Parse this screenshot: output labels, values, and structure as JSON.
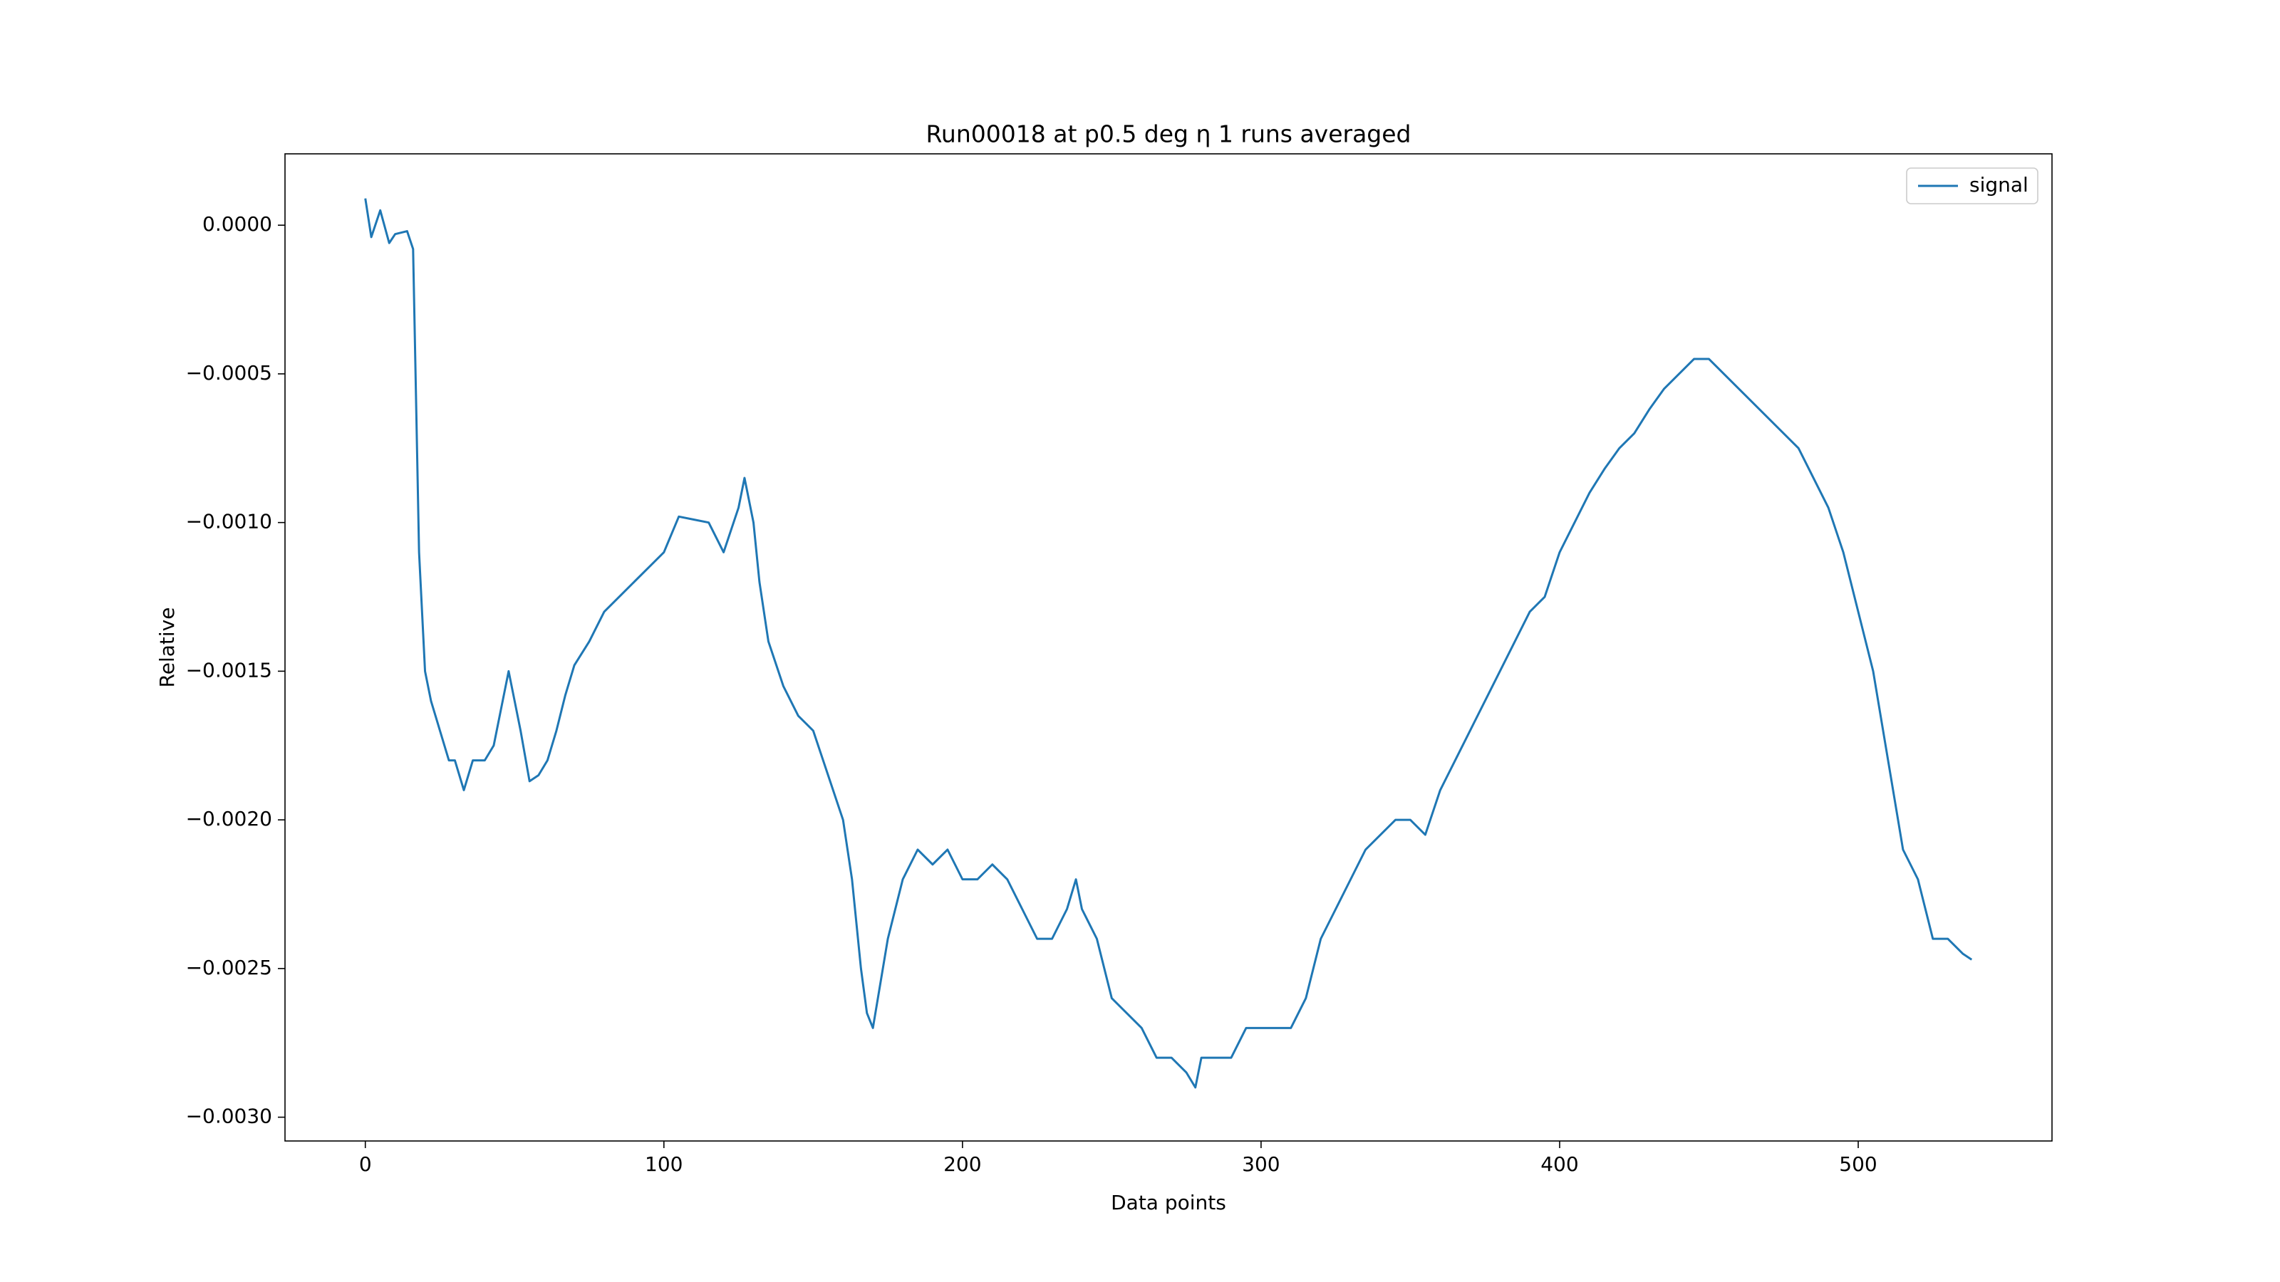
{
  "chart_data": {
    "type": "line",
    "title": "Run00018 at p0.5 deg η 1 runs averaged",
    "x_label": "Data points",
    "y_label": "Relative",
    "x": [
      0,
      2,
      5,
      8,
      10,
      14,
      16,
      18,
      20,
      22,
      25,
      28,
      30,
      33,
      36,
      40,
      43,
      46,
      48,
      50,
      52,
      55,
      58,
      61,
      64,
      67,
      70,
      75,
      80,
      85,
      90,
      95,
      100,
      105,
      110,
      115,
      120,
      125,
      127,
      130,
      132,
      135,
      140,
      145,
      150,
      155,
      160,
      163,
      166,
      168,
      170,
      175,
      180,
      185,
      190,
      195,
      200,
      205,
      210,
      215,
      220,
      225,
      230,
      235,
      238,
      240,
      245,
      250,
      255,
      260,
      265,
      270,
      275,
      278,
      280,
      285,
      290,
      295,
      300,
      305,
      310,
      315,
      320,
      325,
      330,
      335,
      340,
      345,
      350,
      355,
      360,
      365,
      370,
      375,
      380,
      385,
      390,
      395,
      400,
      405,
      410,
      415,
      420,
      425,
      430,
      435,
      440,
      445,
      450,
      455,
      460,
      465,
      470,
      475,
      480,
      485,
      490,
      495,
      500,
      505,
      510,
      515,
      520,
      525,
      530,
      535,
      538
    ],
    "series": [
      {
        "name": "signal",
        "color": "#1f77b4",
        "values": [
          9e-05,
          -4e-05,
          5e-05,
          -6e-05,
          -3e-05,
          -2e-05,
          -8e-05,
          -0.0011,
          -0.0015,
          -0.0016,
          -0.0017,
          -0.0018,
          -0.0018,
          -0.0019,
          -0.0018,
          -0.0018,
          -0.00175,
          -0.0016,
          -0.0015,
          -0.0016,
          -0.0017,
          -0.00187,
          -0.00185,
          -0.0018,
          -0.0017,
          -0.00158,
          -0.00148,
          -0.0014,
          -0.0013,
          -0.00125,
          -0.0012,
          -0.00115,
          -0.0011,
          -0.00098,
          -0.00099,
          -0.001,
          -0.0011,
          -0.00095,
          -0.00085,
          -0.001,
          -0.0012,
          -0.0014,
          -0.00155,
          -0.00165,
          -0.0017,
          -0.00185,
          -0.002,
          -0.0022,
          -0.0025,
          -0.00265,
          -0.0027,
          -0.0024,
          -0.0022,
          -0.0021,
          -0.00215,
          -0.0021,
          -0.0022,
          -0.0022,
          -0.00215,
          -0.0022,
          -0.0023,
          -0.0024,
          -0.0024,
          -0.0023,
          -0.0022,
          -0.0023,
          -0.0024,
          -0.0026,
          -0.00265,
          -0.0027,
          -0.0028,
          -0.0028,
          -0.00285,
          -0.0029,
          -0.0028,
          -0.0028,
          -0.0028,
          -0.0027,
          -0.0027,
          -0.0027,
          -0.0027,
          -0.0026,
          -0.0024,
          -0.0023,
          -0.0022,
          -0.0021,
          -0.00205,
          -0.002,
          -0.002,
          -0.00205,
          -0.0019,
          -0.0018,
          -0.0017,
          -0.0016,
          -0.0015,
          -0.0014,
          -0.0013,
          -0.00125,
          -0.0011,
          -0.001,
          -0.0009,
          -0.00082,
          -0.00075,
          -0.0007,
          -0.00062,
          -0.00055,
          -0.0005,
          -0.00045,
          -0.00045,
          -0.0005,
          -0.00055,
          -0.0006,
          -0.00065,
          -0.0007,
          -0.00075,
          -0.00085,
          -0.00095,
          -0.0011,
          -0.0013,
          -0.0015,
          -0.0018,
          -0.0021,
          -0.0022,
          -0.0024,
          -0.0024,
          -0.00245,
          -0.00247
        ]
      }
    ],
    "xlim": [
      -26.9,
      564.9
    ],
    "ylim": [
      -0.00308,
      0.00024
    ],
    "xticks": [
      0,
      100,
      200,
      300,
      400,
      500
    ],
    "yticks": [
      {
        "value": 0,
        "label": "0.0000"
      },
      {
        "value": -0.0005,
        "label": "−0.0005"
      },
      {
        "value": -0.001,
        "label": "−0.0010"
      },
      {
        "value": -0.0015,
        "label": "−0.0015"
      },
      {
        "value": -0.002,
        "label": "−0.0020"
      },
      {
        "value": -0.0025,
        "label": "−0.0025"
      },
      {
        "value": -0.003,
        "label": "−0.0030"
      }
    ],
    "legend": "upper right",
    "grid": false
  }
}
